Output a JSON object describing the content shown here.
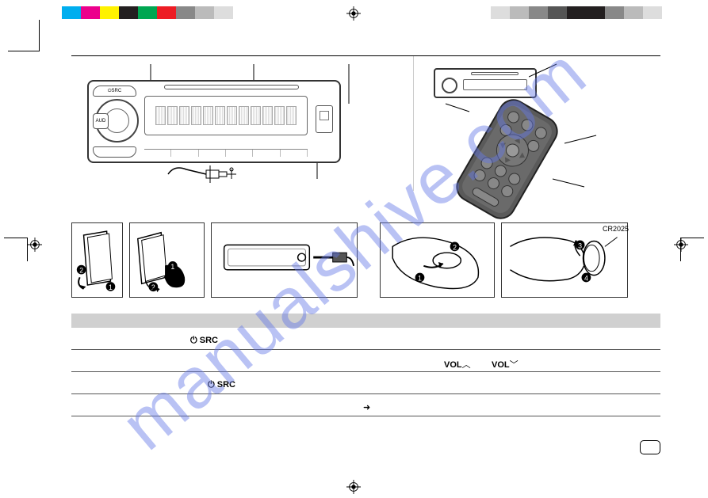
{
  "watermark": "manualshive.com",
  "colorbar_left": [
    "#00aeef",
    "#ec008c",
    "#fff200",
    "#231f20",
    "#00a651",
    "#ed1c24",
    "#888888",
    "#bbbbbb",
    "#dddddd"
  ],
  "colorbar_right": [
    "#dddddd",
    "#bbbbbb",
    "#888888",
    "#555555",
    "#231f20",
    "#231f20",
    "#888888",
    "#bbbbbb",
    "#dddddd"
  ],
  "labels": {
    "src1": "SRC",
    "src2": "SRC",
    "vol_up": "VOL",
    "vol_dn": "VOL",
    "aud": "AUD",
    "battery": "CR2025",
    "power": "⏻"
  },
  "arrows": {
    "right": "➜"
  }
}
